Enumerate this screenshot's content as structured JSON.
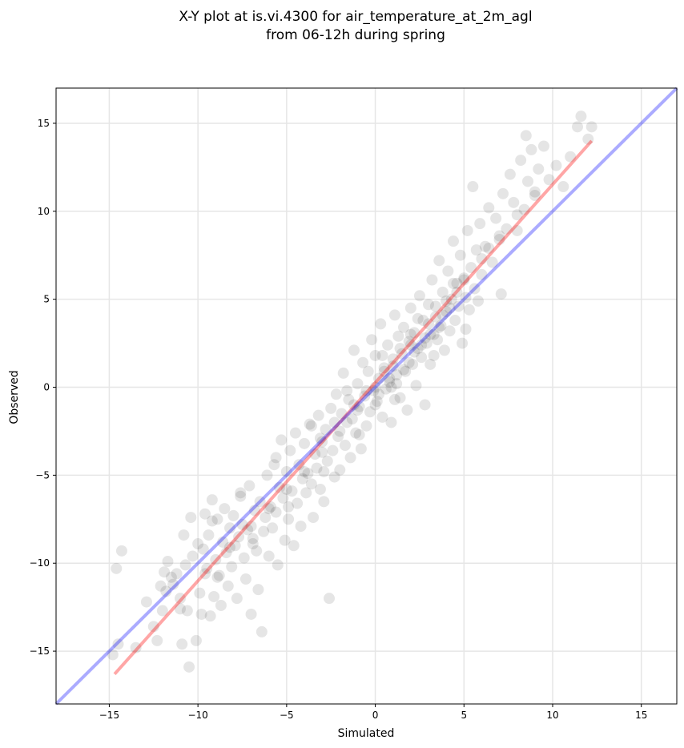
{
  "chart_data": {
    "type": "scatter",
    "title_line1": "X-Y plot at is.vi.4300 for air_temperature_at_2m_agl",
    "title_line2": "from 06-12h during spring",
    "xlabel": "Simulated",
    "ylabel": "Observed",
    "xlim": [
      -18,
      17
    ],
    "ylim": [
      -18,
      17
    ],
    "xticks": [
      -15,
      -10,
      -5,
      0,
      5,
      10,
      15
    ],
    "yticks": [
      -15,
      -10,
      -5,
      0,
      5,
      10,
      15
    ],
    "xtick_labels": [
      "−15",
      "−10",
      "−5",
      "0",
      "5",
      "10",
      "15"
    ],
    "ytick_labels": [
      "−15",
      "−10",
      "−5",
      "0",
      "5",
      "10",
      "15"
    ],
    "grid": true,
    "points_color": "#000000",
    "points_opacity": 0.1,
    "points": [
      [
        -14.6,
        -10.3
      ],
      [
        -14.5,
        -14.6
      ],
      [
        -14.8,
        -15.2
      ],
      [
        -14.3,
        -9.3
      ],
      [
        -12.9,
        -12.2
      ],
      [
        -12.5,
        -13.6
      ],
      [
        -12.3,
        -14.4
      ],
      [
        -12.1,
        -11.3
      ],
      [
        -11.9,
        -10.5
      ],
      [
        -11.8,
        -11.6
      ],
      [
        -11.7,
        -9.9
      ],
      [
        -11.5,
        -10.8
      ],
      [
        -11.4,
        -11.2
      ],
      [
        -11.2,
        -10.6
      ],
      [
        -11.0,
        -12.0
      ],
      [
        -10.9,
        -14.6
      ],
      [
        -10.8,
        -8.4
      ],
      [
        -10.7,
        -10.1
      ],
      [
        -10.6,
        -12.7
      ],
      [
        -10.5,
        -15.9
      ],
      [
        -10.4,
        -7.4
      ],
      [
        -10.3,
        -9.6
      ],
      [
        -10.1,
        -14.4
      ],
      [
        -10.0,
        -8.9
      ],
      [
        -9.9,
        -11.7
      ],
      [
        -9.8,
        -12.9
      ],
      [
        -9.7,
        -9.2
      ],
      [
        -9.6,
        -7.2
      ],
      [
        -9.5,
        -10.3
      ],
      [
        -9.4,
        -8.4
      ],
      [
        -9.3,
        -13.0
      ],
      [
        -9.2,
        -6.4
      ],
      [
        -9.1,
        -11.9
      ],
      [
        -9.0,
        -9.8
      ],
      [
        -8.9,
        -7.5
      ],
      [
        -8.8,
        -10.7
      ],
      [
        -8.7,
        -12.4
      ],
      [
        -8.6,
        -8.8
      ],
      [
        -8.5,
        -6.9
      ],
      [
        -8.4,
        -9.4
      ],
      [
        -8.3,
        -11.3
      ],
      [
        -8.2,
        -8.0
      ],
      [
        -8.1,
        -10.2
      ],
      [
        -8.0,
        -7.3
      ],
      [
        -7.9,
        -9.0
      ],
      [
        -7.8,
        -12.0
      ],
      [
        -7.7,
        -8.5
      ],
      [
        -7.6,
        -6.2
      ],
      [
        -7.5,
        -7.8
      ],
      [
        -7.4,
        -9.7
      ],
      [
        -7.3,
        -10.9
      ],
      [
        -7.2,
        -8.1
      ],
      [
        -7.1,
        -5.6
      ],
      [
        -7.0,
        -12.9
      ],
      [
        -6.9,
        -8.6
      ],
      [
        -6.8,
        -7.0
      ],
      [
        -6.7,
        -9.3
      ],
      [
        -6.6,
        -11.5
      ],
      [
        -6.5,
        -6.5
      ],
      [
        -6.4,
        -13.9
      ],
      [
        -6.3,
        -8.2
      ],
      [
        -6.2,
        -7.4
      ],
      [
        -6.1,
        -5.0
      ],
      [
        -6.0,
        -9.6
      ],
      [
        -5.9,
        -6.8
      ],
      [
        -5.8,
        -8.0
      ],
      [
        -5.7,
        -4.4
      ],
      [
        -5.6,
        -7.1
      ],
      [
        -5.5,
        -10.1
      ],
      [
        -5.4,
        -5.7
      ],
      [
        -5.3,
        -3.0
      ],
      [
        -5.2,
        -6.3
      ],
      [
        -5.1,
        -8.7
      ],
      [
        -5.0,
        -4.8
      ],
      [
        -4.9,
        -7.5
      ],
      [
        -4.8,
        -3.6
      ],
      [
        -4.7,
        -5.9
      ],
      [
        -4.6,
        -9.0
      ],
      [
        -4.5,
        -2.6
      ],
      [
        -4.4,
        -6.6
      ],
      [
        -4.3,
        -4.4
      ],
      [
        -4.2,
        -7.9
      ],
      [
        -4.1,
        -5.2
      ],
      [
        -4.0,
        -3.2
      ],
      [
        -3.9,
        -6.0
      ],
      [
        -3.8,
        -4.9
      ],
      [
        -3.7,
        -2.1
      ],
      [
        -3.6,
        -5.5
      ],
      [
        -3.5,
        -7.4
      ],
      [
        -3.4,
        -3.8
      ],
      [
        -3.3,
        -4.6
      ],
      [
        -3.2,
        -1.6
      ],
      [
        -3.1,
        -5.8
      ],
      [
        -3.0,
        -3.1
      ],
      [
        -2.9,
        -6.5
      ],
      [
        -2.8,
        -2.4
      ],
      [
        -2.7,
        -4.2
      ],
      [
        -2.6,
        -12.0
      ],
      [
        -2.5,
        -1.2
      ],
      [
        -2.4,
        -3.6
      ],
      [
        -2.3,
        -5.1
      ],
      [
        -2.2,
        -0.4
      ],
      [
        -2.1,
        -2.8
      ],
      [
        -2.0,
        -4.7
      ],
      [
        -1.9,
        -1.5
      ],
      [
        -1.8,
        0.8
      ],
      [
        -1.7,
        -3.3
      ],
      [
        -1.6,
        -2.0
      ],
      [
        -1.5,
        -0.7
      ],
      [
        -1.4,
        -4.0
      ],
      [
        -1.3,
        -1.8
      ],
      [
        -1.2,
        2.1
      ],
      [
        -1.1,
        -2.6
      ],
      [
        -1.0,
        0.2
      ],
      [
        -0.9,
        -1.1
      ],
      [
        -0.8,
        -3.5
      ],
      [
        -0.7,
        1.4
      ],
      [
        -0.6,
        -0.5
      ],
      [
        -0.5,
        -2.2
      ],
      [
        -0.4,
        0.9
      ],
      [
        -0.3,
        -1.4
      ],
      [
        -0.2,
        2.7
      ],
      [
        -0.1,
        -0.2
      ],
      [
        0.0,
        1.8
      ],
      [
        0.1,
        -0.8
      ],
      [
        0.2,
        0.5
      ],
      [
        0.3,
        3.6
      ],
      [
        0.4,
        -1.7
      ],
      [
        0.5,
        1.1
      ],
      [
        0.6,
        -0.1
      ],
      [
        0.7,
        2.4
      ],
      [
        0.8,
        0.3
      ],
      [
        0.9,
        -2.0
      ],
      [
        1.0,
        1.6
      ],
      [
        1.1,
        4.1
      ],
      [
        1.2,
        0.7
      ],
      [
        1.3,
        2.9
      ],
      [
        1.4,
        -0.6
      ],
      [
        1.5,
        1.9
      ],
      [
        1.6,
        3.4
      ],
      [
        1.7,
        0.9
      ],
      [
        1.8,
        -1.3
      ],
      [
        1.9,
        2.6
      ],
      [
        2.0,
        4.5
      ],
      [
        2.1,
        1.3
      ],
      [
        2.2,
        3.1
      ],
      [
        2.3,
        0.1
      ],
      [
        2.4,
        2.2
      ],
      [
        2.5,
        5.2
      ],
      [
        2.6,
        1.7
      ],
      [
        2.7,
        3.8
      ],
      [
        2.8,
        -1.0
      ],
      [
        2.9,
        2.5
      ],
      [
        3.0,
        4.7
      ],
      [
        3.1,
        3.0
      ],
      [
        3.2,
        6.1
      ],
      [
        3.3,
        1.8
      ],
      [
        3.4,
        4.0
      ],
      [
        3.5,
        2.7
      ],
      [
        3.6,
        7.2
      ],
      [
        3.7,
        3.5
      ],
      [
        3.8,
        5.4
      ],
      [
        3.9,
        2.1
      ],
      [
        4.0,
        4.3
      ],
      [
        4.1,
        6.6
      ],
      [
        4.2,
        3.2
      ],
      [
        4.3,
        5.0
      ],
      [
        4.4,
        8.3
      ],
      [
        4.5,
        3.8
      ],
      [
        4.6,
        5.9
      ],
      [
        4.7,
        4.6
      ],
      [
        4.8,
        7.5
      ],
      [
        4.9,
        2.5
      ],
      [
        5.0,
        6.2
      ],
      [
        5.1,
        5.1
      ],
      [
        5.2,
        8.9
      ],
      [
        5.3,
        4.4
      ],
      [
        5.4,
        6.8
      ],
      [
        5.5,
        11.4
      ],
      [
        5.6,
        5.6
      ],
      [
        5.7,
        7.8
      ],
      [
        5.8,
        4.9
      ],
      [
        5.9,
        9.3
      ],
      [
        6.0,
        6.4
      ],
      [
        6.2,
        8.0
      ],
      [
        6.4,
        10.2
      ],
      [
        6.6,
        7.1
      ],
      [
        6.8,
        9.6
      ],
      [
        7.0,
        8.4
      ],
      [
        7.2,
        11.0
      ],
      [
        7.4,
        9.0
      ],
      [
        7.6,
        12.1
      ],
      [
        7.8,
        10.5
      ],
      [
        8.0,
        8.9
      ],
      [
        8.2,
        12.9
      ],
      [
        8.4,
        10.1
      ],
      [
        8.5,
        14.3
      ],
      [
        8.6,
        11.7
      ],
      [
        8.8,
        13.5
      ],
      [
        9.0,
        10.9
      ],
      [
        9.2,
        12.4
      ],
      [
        9.5,
        13.7
      ],
      [
        9.8,
        11.8
      ],
      [
        10.2,
        12.6
      ],
      [
        10.6,
        11.4
      ],
      [
        11.0,
        13.1
      ],
      [
        11.4,
        14.8
      ],
      [
        11.6,
        15.4
      ],
      [
        12.0,
        14.1
      ],
      [
        12.2,
        14.8
      ],
      [
        -13.5,
        -14.8
      ],
      [
        -12.0,
        -12.7
      ],
      [
        -9.6,
        -10.6
      ],
      [
        -8.2,
        -9.1
      ],
      [
        -7.0,
        -7.9
      ],
      [
        -6.0,
        -6.9
      ],
      [
        -5.0,
        -5.8
      ],
      [
        -4.0,
        -4.8
      ],
      [
        -3.0,
        -3.7
      ],
      [
        -2.0,
        -2.5
      ],
      [
        -1.0,
        -1.3
      ],
      [
        0.0,
        0.0
      ],
      [
        1.0,
        1.2
      ],
      [
        2.0,
        2.4
      ],
      [
        3.0,
        3.6
      ],
      [
        4.0,
        4.9
      ],
      [
        5.0,
        6.1
      ],
      [
        6.0,
        7.3
      ],
      [
        7.0,
        8.6
      ],
      [
        8.0,
        9.8
      ],
      [
        9.0,
        11.1
      ],
      [
        -9.2,
        -7.6
      ],
      [
        -7.6,
        -6.0
      ],
      [
        -5.6,
        -4.0
      ],
      [
        -3.6,
        -2.2
      ],
      [
        -1.6,
        -0.2
      ],
      [
        0.4,
        1.8
      ],
      [
        2.4,
        3.9
      ],
      [
        4.4,
        5.9
      ],
      [
        6.4,
        7.9
      ],
      [
        -11.0,
        -12.6
      ],
      [
        -8.9,
        -10.8
      ],
      [
        -6.9,
        -8.9
      ],
      [
        -4.9,
        -6.8
      ],
      [
        -2.9,
        -4.8
      ],
      [
        -0.9,
        -2.7
      ],
      [
        1.1,
        -0.7
      ],
      [
        3.1,
        1.3
      ],
      [
        5.1,
        3.3
      ],
      [
        7.1,
        5.3
      ],
      [
        0.8,
        0.5
      ],
      [
        1.2,
        0.2
      ],
      [
        1.6,
        1.0
      ],
      [
        2.2,
        2.0
      ],
      [
        2.6,
        2.4
      ],
      [
        3.3,
        3.0
      ],
      [
        3.8,
        4.1
      ],
      [
        0.5,
        0.9
      ],
      [
        -0.5,
        -0.2
      ],
      [
        0.2,
        -0.4
      ],
      [
        1.9,
        1.4
      ],
      [
        2.8,
        2.8
      ],
      [
        3.6,
        3.4
      ],
      [
        4.2,
        4.5
      ],
      [
        -1.2,
        -1.0
      ],
      [
        -2.3,
        -2.0
      ],
      [
        -3.1,
        -2.9
      ],
      [
        1.4,
        2.2
      ],
      [
        2.0,
        3.0
      ],
      [
        3.4,
        4.6
      ],
      [
        4.6,
        5.4
      ],
      [
        0.0,
        -1.0
      ],
      [
        0.9,
        0.0
      ]
    ],
    "series": [
      {
        "color": "#ff0000",
        "opacity": 0.35,
        "line": [
          [
            -14.7,
            -16.3
          ],
          [
            12.2,
            14.0
          ]
        ]
      },
      {
        "color": "#0000ff",
        "opacity": 0.33,
        "line": [
          [
            -18,
            -18
          ],
          [
            17,
            17
          ]
        ]
      }
    ]
  }
}
